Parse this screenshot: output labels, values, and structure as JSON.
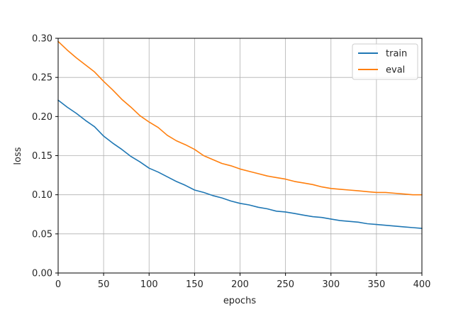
{
  "chart_data": {
    "type": "line",
    "title": "",
    "xlabel": "epochs",
    "ylabel": "loss",
    "xlim": [
      0,
      400
    ],
    "ylim": [
      0,
      0.3
    ],
    "grid": true,
    "legend_position": "top-right",
    "x_ticks": [
      0,
      50,
      100,
      150,
      200,
      250,
      300,
      350,
      400
    ],
    "x_tick_labels": [
      "0",
      "50",
      "100",
      "150",
      "200",
      "250",
      "300",
      "350",
      "400"
    ],
    "y_ticks": [
      0,
      0.05,
      0.1,
      0.15,
      0.2,
      0.25,
      0.3
    ],
    "y_tick_labels": [
      "0.00",
      "0.05",
      "0.10",
      "0.15",
      "0.20",
      "0.25",
      "0.30"
    ],
    "x": [
      0,
      10,
      20,
      30,
      40,
      50,
      60,
      70,
      80,
      90,
      100,
      110,
      120,
      130,
      140,
      150,
      160,
      170,
      180,
      190,
      200,
      210,
      220,
      230,
      240,
      250,
      260,
      270,
      280,
      290,
      300,
      310,
      320,
      330,
      340,
      350,
      360,
      370,
      380,
      390,
      400
    ],
    "series": [
      {
        "name": "train",
        "color": "#1f77b4",
        "values": [
          0.221,
          0.212,
          0.204,
          0.195,
          0.187,
          0.175,
          0.166,
          0.158,
          0.149,
          0.142,
          0.134,
          0.129,
          0.123,
          0.117,
          0.112,
          0.106,
          0.103,
          0.099,
          0.096,
          0.092,
          0.089,
          0.087,
          0.084,
          0.082,
          0.079,
          0.078,
          0.076,
          0.074,
          0.072,
          0.071,
          0.069,
          0.067,
          0.066,
          0.065,
          0.063,
          0.062,
          0.061,
          0.06,
          0.059,
          0.058,
          0.057
        ]
      },
      {
        "name": "eval",
        "color": "#ff7f0e",
        "values": [
          0.296,
          0.285,
          0.275,
          0.266,
          0.257,
          0.245,
          0.234,
          0.222,
          0.212,
          0.201,
          0.193,
          0.186,
          0.176,
          0.169,
          0.164,
          0.158,
          0.15,
          0.145,
          0.14,
          0.137,
          0.133,
          0.13,
          0.127,
          0.124,
          0.122,
          0.12,
          0.117,
          0.115,
          0.113,
          0.11,
          0.108,
          0.107,
          0.106,
          0.105,
          0.104,
          0.103,
          0.103,
          0.102,
          0.101,
          0.1,
          0.1
        ]
      }
    ]
  }
}
